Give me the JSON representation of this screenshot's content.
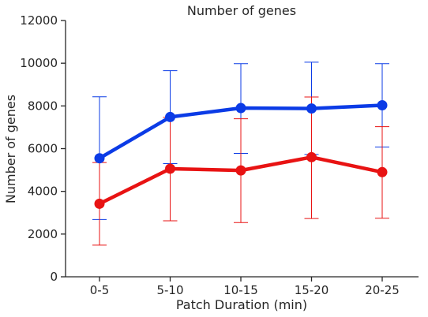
{
  "chart_data": {
    "type": "line",
    "title": "Number of genes",
    "xlabel": "Patch Duration (min)",
    "ylabel": "Number of genes",
    "categories": [
      "0-5",
      "5-10",
      "10-15",
      "15-20",
      "20-25"
    ],
    "ylim": [
      0,
      12000
    ],
    "yticks": [
      0,
      2000,
      4000,
      6000,
      8000,
      10000,
      12000
    ],
    "grid": false,
    "legend": "none",
    "series": [
      {
        "color": "#0b3be6",
        "values": [
          5550,
          7480,
          7900,
          7880,
          8030
        ],
        "error_low": [
          2680,
          5300,
          5780,
          5730,
          6080
        ],
        "error_high": [
          8430,
          9650,
          9980,
          10050,
          9980
        ]
      },
      {
        "color": "#e81313",
        "values": [
          3420,
          5060,
          4980,
          5600,
          4900
        ],
        "error_low": [
          1480,
          2620,
          2540,
          2730,
          2740
        ],
        "error_high": [
          5350,
          7470,
          7400,
          8420,
          7030
        ]
      }
    ]
  }
}
